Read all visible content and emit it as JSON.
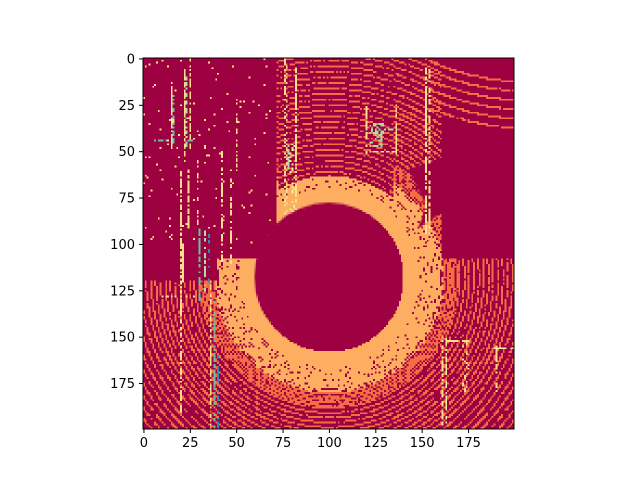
{
  "chart_data": {
    "type": "heatmap",
    "title": "",
    "xlabel": "",
    "ylabel": "",
    "colormap": "Spectral",
    "image_size": [
      200,
      200
    ],
    "xlim": [
      -0.5,
      199.5
    ],
    "ylim": [
      199.5,
      -0.5
    ],
    "y_inverted": true,
    "grid": false,
    "colorbar": false,
    "x_ticks": [
      0,
      25,
      50,
      75,
      100,
      125,
      150,
      175
    ],
    "x_tick_labels": [
      "0",
      "25",
      "50",
      "75",
      "100",
      "125",
      "150",
      "175"
    ],
    "y_ticks": [
      0,
      25,
      50,
      75,
      100,
      125,
      150,
      175
    ],
    "y_tick_labels": [
      "0",
      "25",
      "50",
      "75",
      "100",
      "125",
      "150",
      "175"
    ],
    "colors": {
      "background": "#9e0142",
      "ring_near": "#fdae61",
      "ring_far": "#f46d43",
      "wall": "#fee08b",
      "pale": "#e6f598",
      "green": "#abdda4",
      "teal": "#66c2a5",
      "blue": "#3288bd"
    },
    "features": {
      "center_disk": {
        "center": [
          100,
          118
        ],
        "radius": 40
      },
      "ring_band": {
        "inner_radius": 40,
        "outer_radius": 170
      },
      "vertical_walls_x": [
        15,
        22,
        30,
        42,
        78,
        120,
        153
      ],
      "objects": [
        {
          "name": "left pole pair",
          "x": [
            12,
            24
          ],
          "y": [
            10,
            50
          ]
        },
        {
          "name": "left cluster",
          "x": [
            33,
            40
          ],
          "y": [
            90,
            125
          ]
        },
        {
          "name": "upper bracket",
          "x": [
            120,
            136
          ],
          "y": [
            35,
            50
          ]
        },
        {
          "name": "lower right box",
          "x": [
            160,
            175
          ],
          "y": [
            150,
            198
          ]
        },
        {
          "name": "lower right corner",
          "x": [
            188,
            200
          ],
          "y": [
            155,
            180
          ]
        }
      ]
    }
  }
}
